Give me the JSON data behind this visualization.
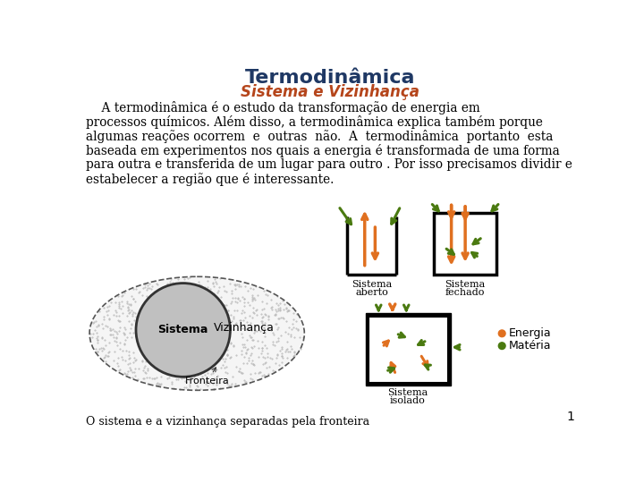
{
  "title": "Termodinâmica",
  "subtitle": "Sistema e Vizinhança",
  "title_color": "#1f3864",
  "subtitle_color": "#b5451b",
  "body_lines": [
    "    A termodinâmica é o estudo da transformação de energia em",
    "processos químicos. Além disso, a termodinâmica explica também porque",
    "algumas reações ocorrem  e  outras  não.  A  termodinâmica  portanto  esta",
    "baseada em experimentos nos quais a energia é transformada de uma forma",
    "para outra e transferida de um lugar para outro . Por isso precisamos dividir e",
    "estabelecer a região que é interessante."
  ],
  "caption_text": "O sistema e a vizinhança separadas pela fronteira",
  "energia_color": "#e07020",
  "materia_color": "#4a7a10",
  "bg_color": "#ffffff",
  "page_number": "1"
}
